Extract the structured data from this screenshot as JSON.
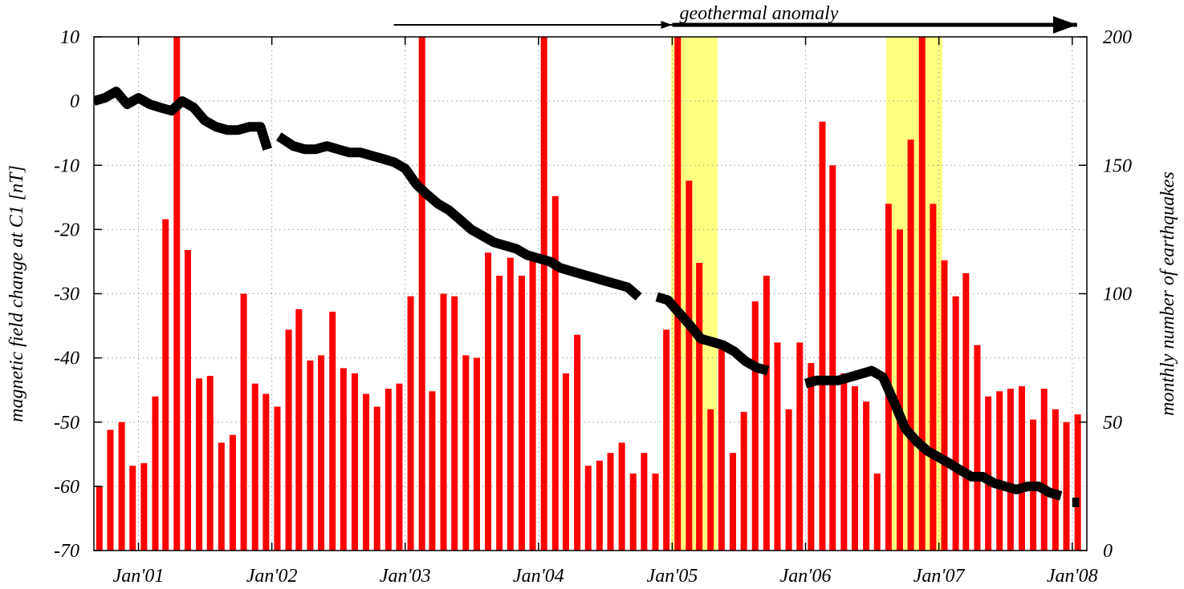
{
  "chart_data": {
    "type": "bar",
    "x_tick_labels": [
      "Jan'01",
      "Jan'02",
      "Jan'03",
      "Jan'04",
      "Jan'05",
      "Jan'06",
      "Jan'07",
      "Jan'08"
    ],
    "left_axis": {
      "label": "magnetic field change at C1 [nT]",
      "range": [
        -70,
        10
      ],
      "ticks": [
        10,
        0,
        -10,
        -20,
        -30,
        -40,
        -50,
        -60,
        -70
      ]
    },
    "right_axis": {
      "label": "monthly number of earthquakes",
      "range": [
        0,
        200
      ],
      "ticks": [
        200,
        150,
        100,
        50,
        0
      ]
    },
    "x_range": [
      "2000-09-01",
      "2008-02-10"
    ],
    "grid": true,
    "annotation": {
      "text": "geothermal anomaly",
      "thin_arrow": [
        "2002-12-01",
        "2005-01-01"
      ],
      "thick_arrow": [
        "2005-01-01",
        "2008-01-01"
      ]
    },
    "highlight_periods": [
      {
        "start": "2004-12-29",
        "end": "2005-05-05",
        "color": "#ffff80"
      },
      {
        "start": "2006-08-10",
        "end": "2007-01-10",
        "color": "#ffff80"
      }
    ],
    "earthquakes": {
      "color": "#ff0000",
      "months": [
        "2000-09",
        "2000-10",
        "2000-11",
        "2000-12",
        "2001-01",
        "2001-02",
        "2001-03",
        "2001-04",
        "2001-05",
        "2001-06",
        "2001-07",
        "2001-08",
        "2001-09",
        "2001-10",
        "2001-11",
        "2001-12",
        "2002-01",
        "2002-02",
        "2002-03",
        "2002-04",
        "2002-05",
        "2002-06",
        "2002-07",
        "2002-08",
        "2002-09",
        "2002-10",
        "2002-11",
        "2002-12",
        "2003-01",
        "2003-02",
        "2003-03",
        "2003-04",
        "2003-05",
        "2003-06",
        "2003-07",
        "2003-08",
        "2003-09",
        "2003-10",
        "2003-11",
        "2003-12",
        "2004-01",
        "2004-02",
        "2004-03",
        "2004-04",
        "2004-05",
        "2004-06",
        "2004-07",
        "2004-08",
        "2004-09",
        "2004-10",
        "2004-11",
        "2004-12",
        "2005-01",
        "2005-02",
        "2005-03",
        "2005-04",
        "2005-05",
        "2005-06",
        "2005-07",
        "2005-08",
        "2005-09",
        "2005-10",
        "2005-11",
        "2005-12",
        "2006-01",
        "2006-02",
        "2006-03",
        "2006-04",
        "2006-05",
        "2006-06",
        "2006-07",
        "2006-08",
        "2006-09",
        "2006-10",
        "2006-11",
        "2006-12",
        "2007-01",
        "2007-02",
        "2007-03",
        "2007-04",
        "2007-05",
        "2007-06",
        "2007-07",
        "2007-08",
        "2007-09",
        "2007-10",
        "2007-11",
        "2007-12",
        "2008-01"
      ],
      "values": [
        25,
        47,
        50,
        33,
        34,
        60,
        129,
        200,
        117,
        67,
        68,
        42,
        45,
        100,
        65,
        61,
        56,
        86,
        94,
        74,
        76,
        93,
        71,
        69,
        61,
        56,
        63,
        65,
        99,
        200,
        62,
        100,
        99,
        76,
        75,
        116,
        107,
        114,
        107,
        115,
        200,
        138,
        69,
        84,
        33,
        35,
        38,
        42,
        30,
        38,
        30,
        86,
        200,
        144,
        112,
        55,
        80,
        38,
        54,
        97,
        107,
        81,
        55,
        81,
        73,
        167,
        150,
        69,
        64,
        58,
        30,
        135,
        125,
        160,
        200,
        135,
        113,
        99,
        108,
        80,
        60,
        62,
        63,
        64,
        51,
        63,
        55,
        50,
        53
      ]
    },
    "earthquake_bars_exceeding_axis": [
      "2001-04",
      "2003-02",
      "2004-01",
      "2005-01",
      "2006-11"
    ],
    "magnetic_field": {
      "color": "#000000",
      "segments": [
        [
          [
            "2000-09-01",
            0
          ],
          [
            "2000-10-01",
            0.5
          ],
          [
            "2000-11-01",
            1.5
          ],
          [
            "2000-12-01",
            -0.5
          ],
          [
            "2001-01-01",
            0.5
          ],
          [
            "2001-02-01",
            -0.5
          ],
          [
            "2001-03-01",
            -1
          ],
          [
            "2001-04-01",
            -1.5
          ],
          [
            "2001-05-01",
            0
          ],
          [
            "2001-06-01",
            -1
          ],
          [
            "2001-07-01",
            -3
          ],
          [
            "2001-08-01",
            -4
          ],
          [
            "2001-09-01",
            -4.5
          ],
          [
            "2001-10-01",
            -4.5
          ],
          [
            "2001-11-01",
            -4
          ],
          [
            "2001-12-01",
            -4
          ],
          [
            "2001-12-20",
            -7.5
          ]
        ],
        [
          [
            "2002-01-20",
            -5.5
          ],
          [
            "2002-03-01",
            -7
          ],
          [
            "2002-04-01",
            -7.5
          ],
          [
            "2002-05-01",
            -7.5
          ],
          [
            "2002-06-01",
            -7
          ],
          [
            "2002-07-01",
            -7.5
          ],
          [
            "2002-08-01",
            -8
          ],
          [
            "2002-09-01",
            -8
          ],
          [
            "2002-10-01",
            -8.5
          ],
          [
            "2002-11-01",
            -9
          ],
          [
            "2002-12-01",
            -9.5
          ],
          [
            "2003-01-01",
            -10.5
          ],
          [
            "2003-02-01",
            -13
          ],
          [
            "2003-03-01",
            -14.5
          ],
          [
            "2003-04-01",
            -16
          ],
          [
            "2003-05-01",
            -17
          ],
          [
            "2003-06-01",
            -18.5
          ],
          [
            "2003-07-01",
            -20
          ],
          [
            "2003-08-01",
            -21
          ],
          [
            "2003-09-01",
            -22
          ],
          [
            "2003-10-01",
            -22.5
          ],
          [
            "2003-11-01",
            -23
          ],
          [
            "2003-12-01",
            -24
          ],
          [
            "2004-01-01",
            -24.5
          ],
          [
            "2004-02-01",
            -25
          ],
          [
            "2004-03-01",
            -26
          ],
          [
            "2004-04-01",
            -26.5
          ],
          [
            "2004-05-01",
            -27
          ],
          [
            "2004-06-01",
            -27.5
          ],
          [
            "2004-07-01",
            -28
          ],
          [
            "2004-08-01",
            -28.5
          ],
          [
            "2004-09-01",
            -29
          ],
          [
            "2004-10-01",
            -30.5
          ]
        ],
        [
          [
            "2004-11-20",
            -30.5
          ],
          [
            "2004-12-20",
            -31
          ],
          [
            "2005-01-20",
            -33
          ],
          [
            "2005-02-20",
            -35
          ],
          [
            "2005-03-20",
            -37
          ],
          [
            "2005-04-20",
            -37.5
          ],
          [
            "2005-05-20",
            -38
          ],
          [
            "2005-06-20",
            -39
          ],
          [
            "2005-07-20",
            -40.5
          ],
          [
            "2005-08-20",
            -41.5
          ],
          [
            "2005-09-20",
            -42
          ]
        ],
        [
          [
            "2006-01-01",
            -44
          ],
          [
            "2006-02-01",
            -43.5
          ],
          [
            "2006-03-01",
            -43.5
          ],
          [
            "2006-04-01",
            -43.5
          ],
          [
            "2006-05-01",
            -43
          ],
          [
            "2006-06-01",
            -42.5
          ],
          [
            "2006-07-01",
            -42
          ],
          [
            "2006-08-01",
            -43
          ],
          [
            "2006-09-01",
            -47
          ],
          [
            "2006-10-01",
            -51
          ],
          [
            "2006-11-01",
            -53
          ],
          [
            "2006-12-01",
            -54.5
          ],
          [
            "2007-01-01",
            -55.5
          ],
          [
            "2007-02-01",
            -56.5
          ],
          [
            "2007-03-01",
            -57.5
          ],
          [
            "2007-04-01",
            -58.5
          ],
          [
            "2007-05-01",
            -58.5
          ],
          [
            "2007-06-01",
            -59.5
          ],
          [
            "2007-07-01",
            -60
          ],
          [
            "2007-08-01",
            -60.5
          ],
          [
            "2007-09-01",
            -60
          ],
          [
            "2007-10-01",
            -60
          ],
          [
            "2007-11-01",
            -61
          ],
          [
            "2007-12-01",
            -61.5
          ]
        ],
        [
          [
            "2008-01-01",
            -62.5
          ],
          [
            "2008-01-20",
            -62.5
          ]
        ]
      ]
    }
  }
}
